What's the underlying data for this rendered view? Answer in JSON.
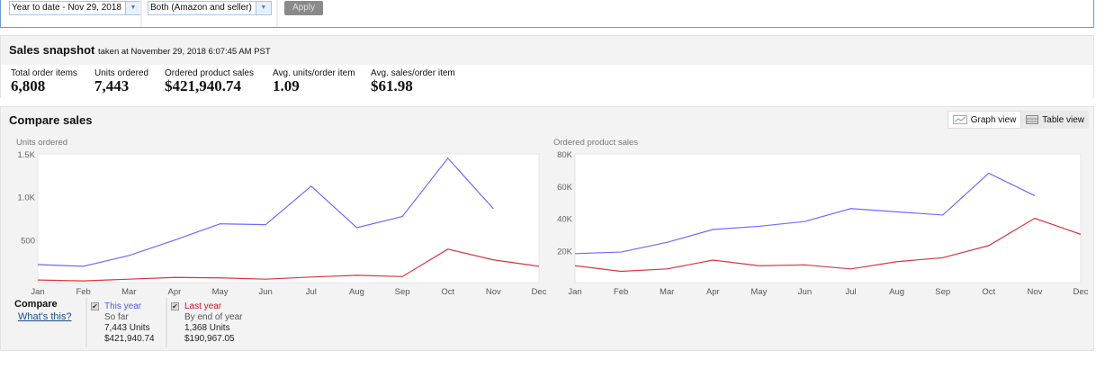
{
  "filters": {
    "date_range": "Year to date - Nov 29, 2018",
    "fulfillment": "Both (Amazon and seller)",
    "apply_label": "Apply"
  },
  "snapshot": {
    "title": "Sales snapshot",
    "taken_at": "taken at November 29, 2018 6:07:45 AM PST",
    "metrics": [
      {
        "label": "Total order items",
        "value": "6,808"
      },
      {
        "label": "Units ordered",
        "value": "7,443"
      },
      {
        "label": "Ordered product sales",
        "value": "$421,940.74"
      },
      {
        "label": "Avg. units/order item",
        "value": "1.09"
      },
      {
        "label": "Avg. sales/order item",
        "value": "$61.98"
      }
    ]
  },
  "compare": {
    "title": "Compare sales",
    "graph_view": "Graph view",
    "table_view": "Table view",
    "label": "Compare",
    "whats_this": "What's this?",
    "this_year": {
      "label": "This year",
      "sub": "So far",
      "units": "7,443 Units",
      "sales": "$421,940.74",
      "checked": true
    },
    "last_year": {
      "label": "Last year",
      "sub": "By end of year",
      "units": "1,368 Units",
      "sales": "$190,967.05",
      "checked": true
    }
  },
  "colors": {
    "this_year": "#6b6bff",
    "last_year": "#d9363e"
  },
  "chart_data": [
    {
      "type": "line",
      "ylabel": "Units ordered",
      "categories": [
        "Jan",
        "Feb",
        "Mar",
        "Apr",
        "May",
        "Jun",
        "Jul",
        "Aug",
        "Sep",
        "Oct",
        "Nov",
        "Dec"
      ],
      "yticks": [
        "500",
        "1.0K",
        "1.5K"
      ],
      "ytick_values": [
        500,
        1000,
        1500
      ],
      "ylim": [
        0,
        1500
      ],
      "series": [
        {
          "name": "This year",
          "values": [
            210,
            190,
            315,
            495,
            685,
            675,
            1125,
            640,
            770,
            1450,
            860,
            null
          ]
        },
        {
          "name": "Last year",
          "values": [
            30,
            20,
            40,
            60,
            55,
            40,
            65,
            85,
            70,
            390,
            265,
            190
          ]
        }
      ]
    },
    {
      "type": "line",
      "ylabel": "Ordered product sales",
      "categories": [
        "Jan",
        "Feb",
        "Mar",
        "Apr",
        "May",
        "Jun",
        "Jul",
        "Aug",
        "Sep",
        "Oct",
        "Nov",
        "Dec"
      ],
      "yticks": [
        "20K",
        "40K",
        "60K",
        "80K"
      ],
      "ytick_values": [
        20000,
        40000,
        60000,
        80000
      ],
      "ylim": [
        0,
        80000
      ],
      "series": [
        {
          "name": "This year",
          "values": [
            18000,
            19000,
            25000,
            33000,
            35000,
            38000,
            46000,
            44000,
            42000,
            68000,
            54000,
            null
          ]
        },
        {
          "name": "Last year",
          "values": [
            10500,
            7000,
            8500,
            14000,
            10500,
            11000,
            8500,
            13000,
            15500,
            23000,
            40000,
            30000
          ]
        }
      ]
    }
  ]
}
